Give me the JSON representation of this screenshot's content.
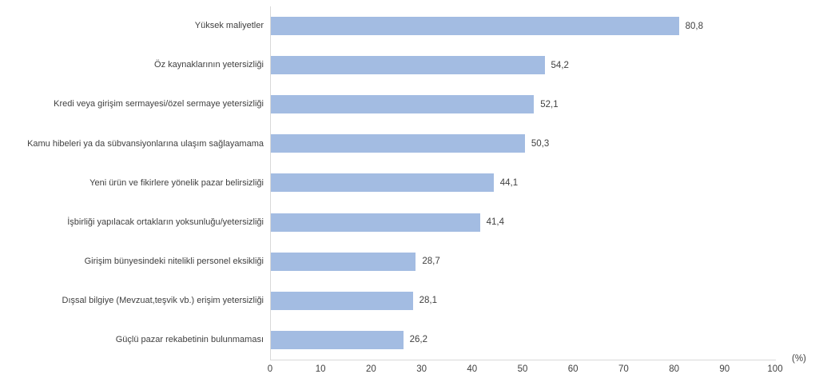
{
  "chart_data": {
    "type": "bar",
    "orientation": "horizontal",
    "title": "",
    "categories": [
      "Yüksek maliyetler",
      "Öz kaynaklarının yetersizliği",
      "Kredi veya girişim sermayesi/özel sermaye yetersizliği",
      "Kamu hibeleri ya da sübvansiyonlarına ulaşım sağlayamama",
      "Yeni ürün ve fikirlere yönelik pazar belirsizliği",
      "İşbirliği yapılacak ortakların yoksunluğu/yetersizliği",
      "Girişim bünyesindeki nitelikli personel eksikliği",
      "Dışsal bilgiye (Mevzuat,teşvik vb.) erişim yetersizliği",
      "Güçlü pazar rekabetinin bulunmaması"
    ],
    "values": [
      80.8,
      54.2,
      52.1,
      50.3,
      44.1,
      41.4,
      28.7,
      28.1,
      26.2
    ],
    "value_labels": [
      "80,8",
      "54,2",
      "52,1",
      "50,3",
      "44,1",
      "41,4",
      "28,7",
      "28,1",
      "26,2"
    ],
    "x_ticks": [
      0,
      10,
      20,
      30,
      40,
      50,
      60,
      70,
      80,
      90,
      100
    ],
    "xlim": [
      0,
      100
    ],
    "unit_label": "(%)",
    "grid": false,
    "legend": "none",
    "bar_color": "#a3bce2",
    "axis_color": "#d9d9d9",
    "text_color": "#404040"
  }
}
